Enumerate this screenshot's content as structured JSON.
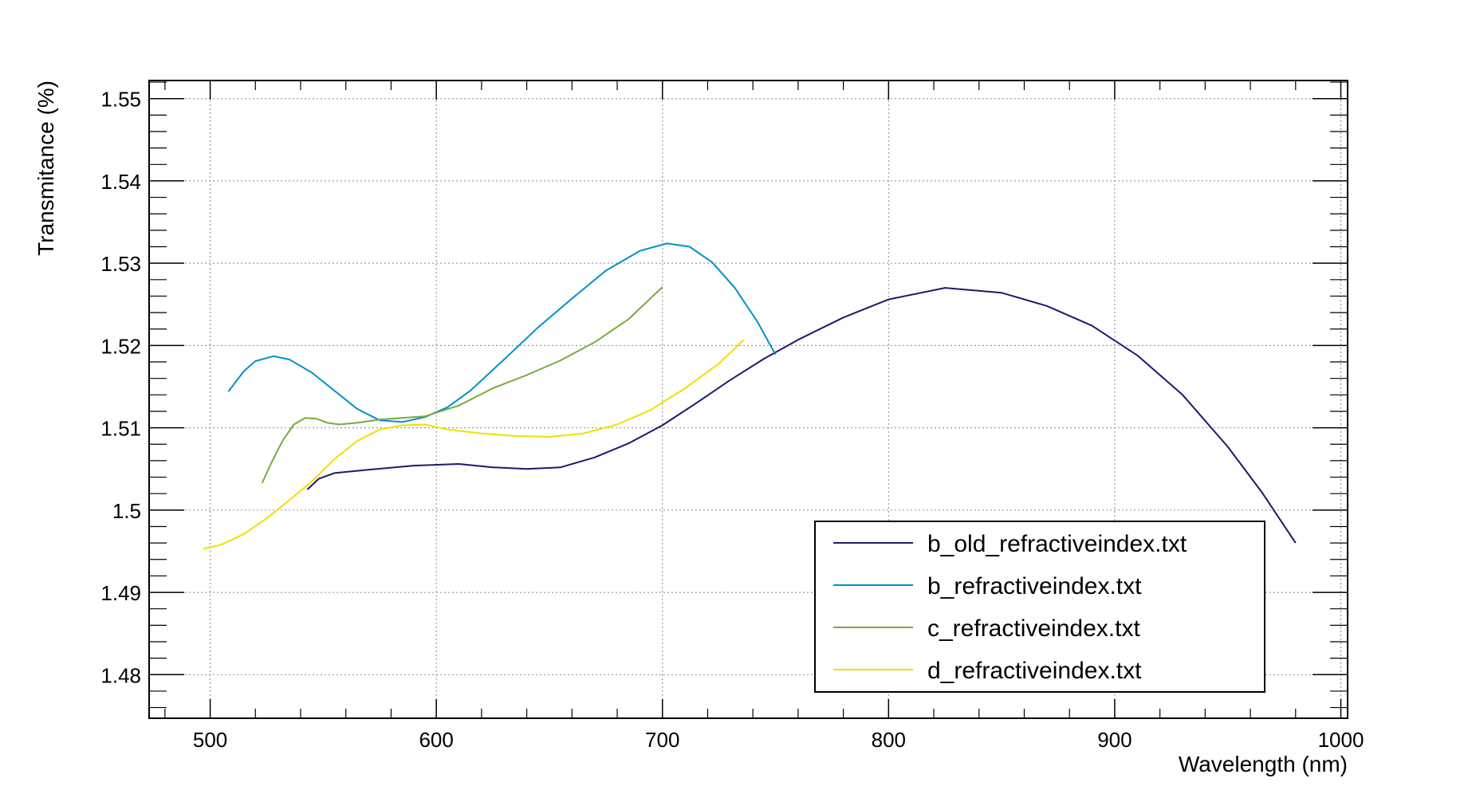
{
  "chart_data": {
    "type": "line",
    "title": "",
    "xlabel": "Wavelength (nm)",
    "ylabel": "Transmitance (%)",
    "xlim": [
      473,
      1003
    ],
    "ylim": [
      1.4747,
      1.5522
    ],
    "xticks": [
      500,
      600,
      700,
      800,
      900,
      1000
    ],
    "xtick_labels": [
      "500",
      "600",
      "700",
      "800",
      "900",
      "1000"
    ],
    "yticks": [
      1.48,
      1.49,
      1.5,
      1.51,
      1.52,
      1.53,
      1.54,
      1.55
    ],
    "ytick_labels": [
      "1.48",
      "1.49",
      "1.5",
      "1.51",
      "1.52",
      "1.53",
      "1.54",
      "1.55"
    ],
    "grid": true,
    "legend_position": "bottom-right",
    "series": [
      {
        "name": "b_old_refractiveindex.txt",
        "color": "#1a1a6e",
        "x": [
          543,
          548,
          555,
          570,
          590,
          610,
          625,
          640,
          655,
          670,
          685,
          700,
          715,
          730,
          745,
          760,
          780,
          800,
          825,
          850,
          870,
          890,
          910,
          930,
          950,
          965,
          980
        ],
        "y": [
          1.5025,
          1.5038,
          1.5045,
          1.5049,
          1.5054,
          1.5056,
          1.5052,
          1.505,
          1.5052,
          1.5064,
          1.5081,
          1.5103,
          1.513,
          1.5158,
          1.5184,
          1.5207,
          1.5234,
          1.5256,
          1.527,
          1.5264,
          1.5248,
          1.5224,
          1.5188,
          1.514,
          1.5077,
          1.5022,
          1.496
        ]
      },
      {
        "name": "b_refractiveindex.txt",
        "color": "#0090c8",
        "x": [
          508,
          515,
          520,
          528,
          535,
          545,
          555,
          565,
          575,
          585,
          595,
          605,
          615,
          630,
          645,
          660,
          675,
          690,
          702,
          712,
          722,
          732,
          742,
          750
        ],
        "y": [
          1.5144,
          1.5169,
          1.5181,
          1.5187,
          1.5183,
          1.5167,
          1.5145,
          1.5123,
          1.5109,
          1.5107,
          1.5113,
          1.5125,
          1.5145,
          1.5183,
          1.5222,
          1.5257,
          1.5291,
          1.5315,
          1.5324,
          1.532,
          1.5301,
          1.527,
          1.5229,
          1.5189
        ]
      },
      {
        "name": "c_refractiveindex.txt",
        "color": "#7aaa3a",
        "x": [
          523,
          527,
          532,
          537,
          542,
          547,
          552,
          557,
          565,
          575,
          585,
          595,
          610,
          625,
          640,
          655,
          670,
          685,
          700
        ],
        "y": [
          1.5033,
          1.5057,
          1.5084,
          1.5104,
          1.5112,
          1.5111,
          1.5106,
          1.5104,
          1.5106,
          1.511,
          1.5112,
          1.5114,
          1.5127,
          1.5148,
          1.5164,
          1.5182,
          1.5204,
          1.5232,
          1.5271
        ]
      },
      {
        "name": "d_refractiveindex.txt",
        "color": "#f0e000",
        "x": [
          497,
          505,
          515,
          525,
          535,
          545,
          555,
          565,
          575,
          585,
          595,
          605,
          620,
          635,
          650,
          665,
          680,
          695,
          710,
          725,
          736
        ],
        "y": [
          1.4953,
          1.4958,
          1.4971,
          1.499,
          1.5012,
          1.5035,
          1.5062,
          1.5084,
          1.5098,
          1.5103,
          1.5104,
          1.5098,
          1.5093,
          1.509,
          1.5089,
          1.5093,
          1.5104,
          1.5122,
          1.5148,
          1.5178,
          1.5207
        ]
      }
    ]
  }
}
